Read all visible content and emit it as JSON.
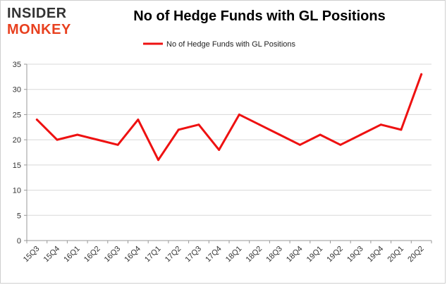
{
  "logo": {
    "line1": "INSIDER",
    "line2": "MONKEY",
    "color1": "#333333",
    "color2": "#e8401f"
  },
  "chart_data": {
    "type": "line",
    "title": "No of Hedge Funds with GL Positions",
    "xlabel": "",
    "ylabel": "",
    "categories": [
      "15Q3",
      "15Q4",
      "16Q1",
      "16Q2",
      "16Q3",
      "16Q4",
      "17Q1",
      "17Q2",
      "17Q3",
      "17Q4",
      "18Q1",
      "18Q2",
      "18Q3",
      "18Q4",
      "19Q1",
      "19Q2",
      "19Q3",
      "19Q4",
      "20Q1",
      "20Q2"
    ],
    "series": [
      {
        "name": "No of Hedge Funds with GL Positions",
        "color": "#ee1111",
        "values": [
          24,
          20,
          21,
          20,
          19,
          24,
          16,
          22,
          23,
          18,
          25,
          23,
          21,
          19,
          21,
          19,
          21,
          23,
          22,
          33
        ]
      }
    ],
    "ylim": [
      0,
      35
    ],
    "yticks": [
      0,
      5,
      10,
      15,
      20,
      25,
      30,
      35
    ],
    "grid": true,
    "legend": "top-center"
  }
}
